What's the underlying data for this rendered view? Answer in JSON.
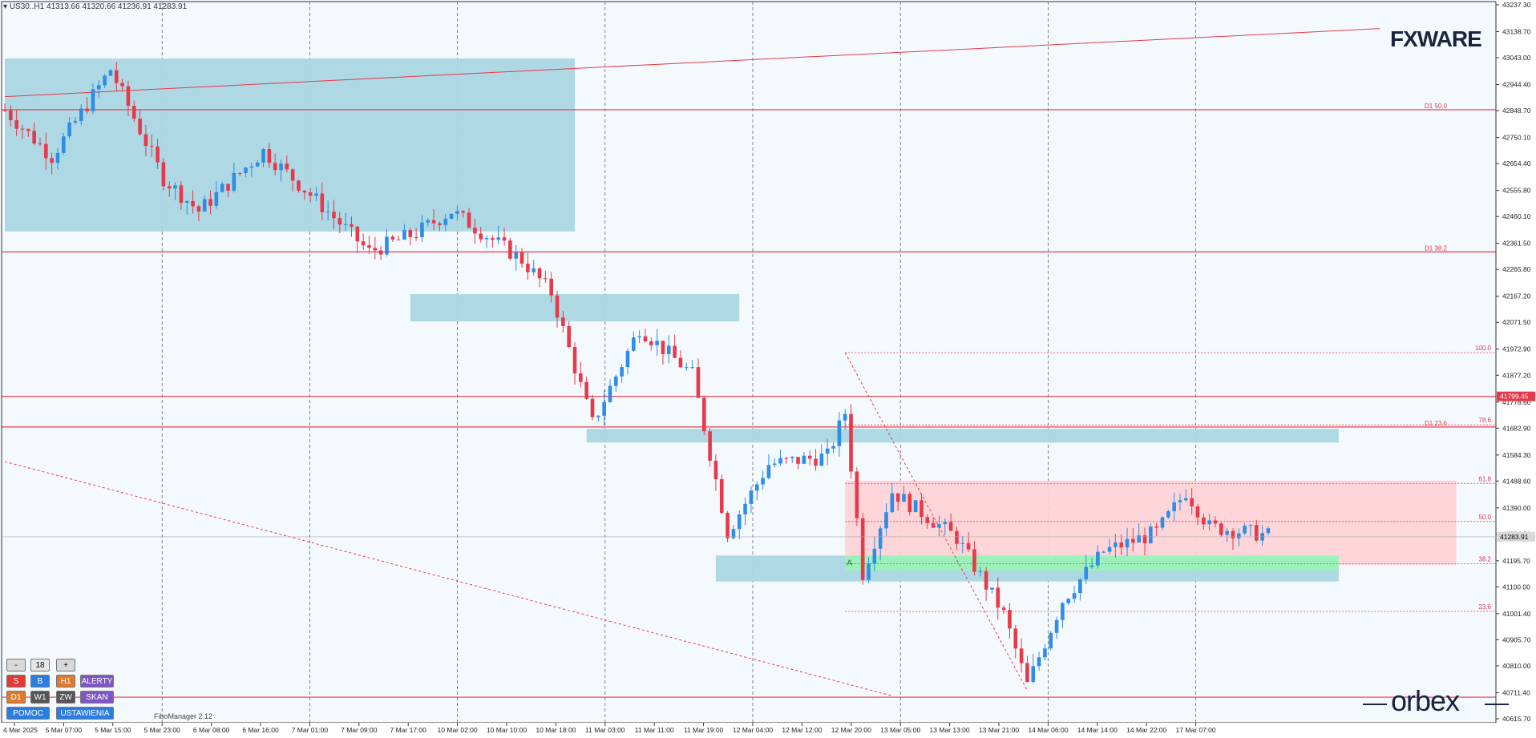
{
  "header": {
    "symbol": "US30..H1",
    "ohlc": "41313.66 41320.66 41236.91 41283.91"
  },
  "branding": {
    "top_logo": "FXWARE",
    "bottom_logo": "orbex"
  },
  "panel": {
    "minus": "-",
    "value": "18",
    "plus": "+",
    "row1": [
      "S",
      "B",
      "H1",
      "ALERTY"
    ],
    "row2": [
      "D1",
      "W1",
      "ZW",
      "SKAN"
    ],
    "row3": [
      "POMOC",
      "USTAWIENIA"
    ],
    "footer": "FiboManager 2.12"
  },
  "colors": {
    "bull": "#2e8de6",
    "bear": "#e8394a",
    "zone": "#a9d6e3",
    "fib_zone": "#ffd0d5",
    "green_zone": "#9cf0b9",
    "level": "#e8394a",
    "background": "#f4f9fd"
  },
  "chart_data": {
    "type": "candlestick",
    "title": "",
    "symbol": "US30..H1",
    "ylim": [
      40615.7,
      43237.3
    ],
    "y_ticks": [
      "43237.30",
      "43138.70",
      "43043.00",
      "42944.40",
      "42848.70",
      "42750.10",
      "42654.40",
      "42555.80",
      "42460.10",
      "42361.50",
      "42265.80",
      "42167.20",
      "42071.50",
      "41972.90",
      "41877.20",
      "41778.60",
      "41682.90",
      "41584.30",
      "41488.60",
      "41390.00",
      "41294.30",
      "41195.70",
      "41100.00",
      "41001.40",
      "40905.70",
      "40810.00",
      "40711.40",
      "40615.70"
    ],
    "x_ticks": [
      "4 Mar 2025",
      "5 Mar 07:00",
      "5 Mar 15:00",
      "5 Mar 23:00",
      "6 Mar 08:00",
      "6 Mar 16:00",
      "7 Mar 01:00",
      "7 Mar 09:00",
      "7 Mar 17:00",
      "10 Mar 02:00",
      "10 Mar 10:00",
      "10 Mar 18:00",
      "11 Mar 03:00",
      "11 Mar 11:00",
      "11 Mar 19:00",
      "12 Mar 04:00",
      "12 Mar 12:00",
      "12 Mar 20:00",
      "13 Mar 05:00",
      "13 Mar 13:00",
      "13 Mar 21:00",
      "14 Mar 06:00",
      "14 Mar 14:00",
      "14 Mar 22:00",
      "17 Mar 07:00"
    ],
    "current_price": "41283.91",
    "marked_price": "41799.45",
    "candle_count": 184,
    "key_points": [
      {
        "index": 0,
        "price": 42850
      },
      {
        "index": 8,
        "price": 42680
      },
      {
        "index": 18,
        "price": 43000
      },
      {
        "index": 27,
        "price": 42600
      },
      {
        "index": 33,
        "price": 42480
      },
      {
        "index": 44,
        "price": 42700
      },
      {
        "index": 53,
        "price": 42520
      },
      {
        "index": 62,
        "price": 42330
      },
      {
        "index": 70,
        "price": 42400
      },
      {
        "index": 76,
        "price": 42480
      },
      {
        "index": 88,
        "price": 42300
      },
      {
        "index": 93,
        "price": 42180
      },
      {
        "index": 100,
        "price": 41700
      },
      {
        "index": 108,
        "price": 42050
      },
      {
        "index": 117,
        "price": 41880
      },
      {
        "index": 123,
        "price": 41300
      },
      {
        "index": 130,
        "price": 41550
      },
      {
        "index": 140,
        "price": 41580
      },
      {
        "index": 143,
        "price": 41740
      },
      {
        "index": 146,
        "price": 41150
      },
      {
        "index": 151,
        "price": 41450
      },
      {
        "index": 162,
        "price": 41280
      },
      {
        "index": 170,
        "price": 41000
      },
      {
        "index": 174,
        "price": 40740
      },
      {
        "index": 180,
        "price": 41050
      },
      {
        "index": 187,
        "price": 41230
      },
      {
        "index": 196,
        "price": 41300
      },
      {
        "index": 201,
        "price": 41450
      },
      {
        "index": 205,
        "price": 41320
      },
      {
        "index": 215,
        "price": 41290
      }
    ],
    "fib_levels": [
      {
        "label": "100.0",
        "price": 41960
      },
      {
        "label": "78.6",
        "price": 41695
      },
      {
        "label": "61.8",
        "price": 41480
      },
      {
        "label": "50.0",
        "price": 41340
      },
      {
        "label": "38.2",
        "price": 41185
      },
      {
        "label": "23.6",
        "price": 41010
      }
    ],
    "horizontal_levels": [
      {
        "label": "D1 50.0",
        "price": 42852
      },
      {
        "label": "D1 38.2",
        "price": 42330
      },
      {
        "label": "",
        "price": 41799.45
      },
      {
        "label": "D1 23.6",
        "price": 41687
      },
      {
        "label": "",
        "price": 40695
      }
    ],
    "zones": [
      {
        "from_index": 0,
        "to_index": 97,
        "high": 43040,
        "low": 42405,
        "kind": "supply"
      },
      {
        "from_index": 69,
        "to_index": 125,
        "high": 42175,
        "low": 42075,
        "kind": "supply"
      },
      {
        "from_index": 99,
        "to_index": 227,
        "high": 41680,
        "low": 41630,
        "kind": "supply"
      },
      {
        "from_index": 121,
        "to_index": 227,
        "high": 41215,
        "low": 41120,
        "kind": "demand"
      }
    ],
    "fib_zone": {
      "from_index": 143,
      "to_index": 247,
      "high": 41490,
      "low": 41180
    },
    "green_zone": {
      "label": "A",
      "from_index": 143,
      "to_index": 227,
      "high": 41215,
      "low": 41160
    },
    "trendlines": [
      {
        "style": "solid",
        "from": {
          "index": 0,
          "price": 42900
        },
        "to": {
          "index": 234,
          "price": 43150
        }
      },
      {
        "style": "dashed",
        "from": {
          "index": 0,
          "price": 41560
        },
        "to": {
          "index": 151,
          "price": 40700
        }
      },
      {
        "style": "dashed",
        "from": {
          "index": 143,
          "price": 41960
        },
        "to": {
          "index": 174,
          "price": 40720
        }
      }
    ]
  }
}
